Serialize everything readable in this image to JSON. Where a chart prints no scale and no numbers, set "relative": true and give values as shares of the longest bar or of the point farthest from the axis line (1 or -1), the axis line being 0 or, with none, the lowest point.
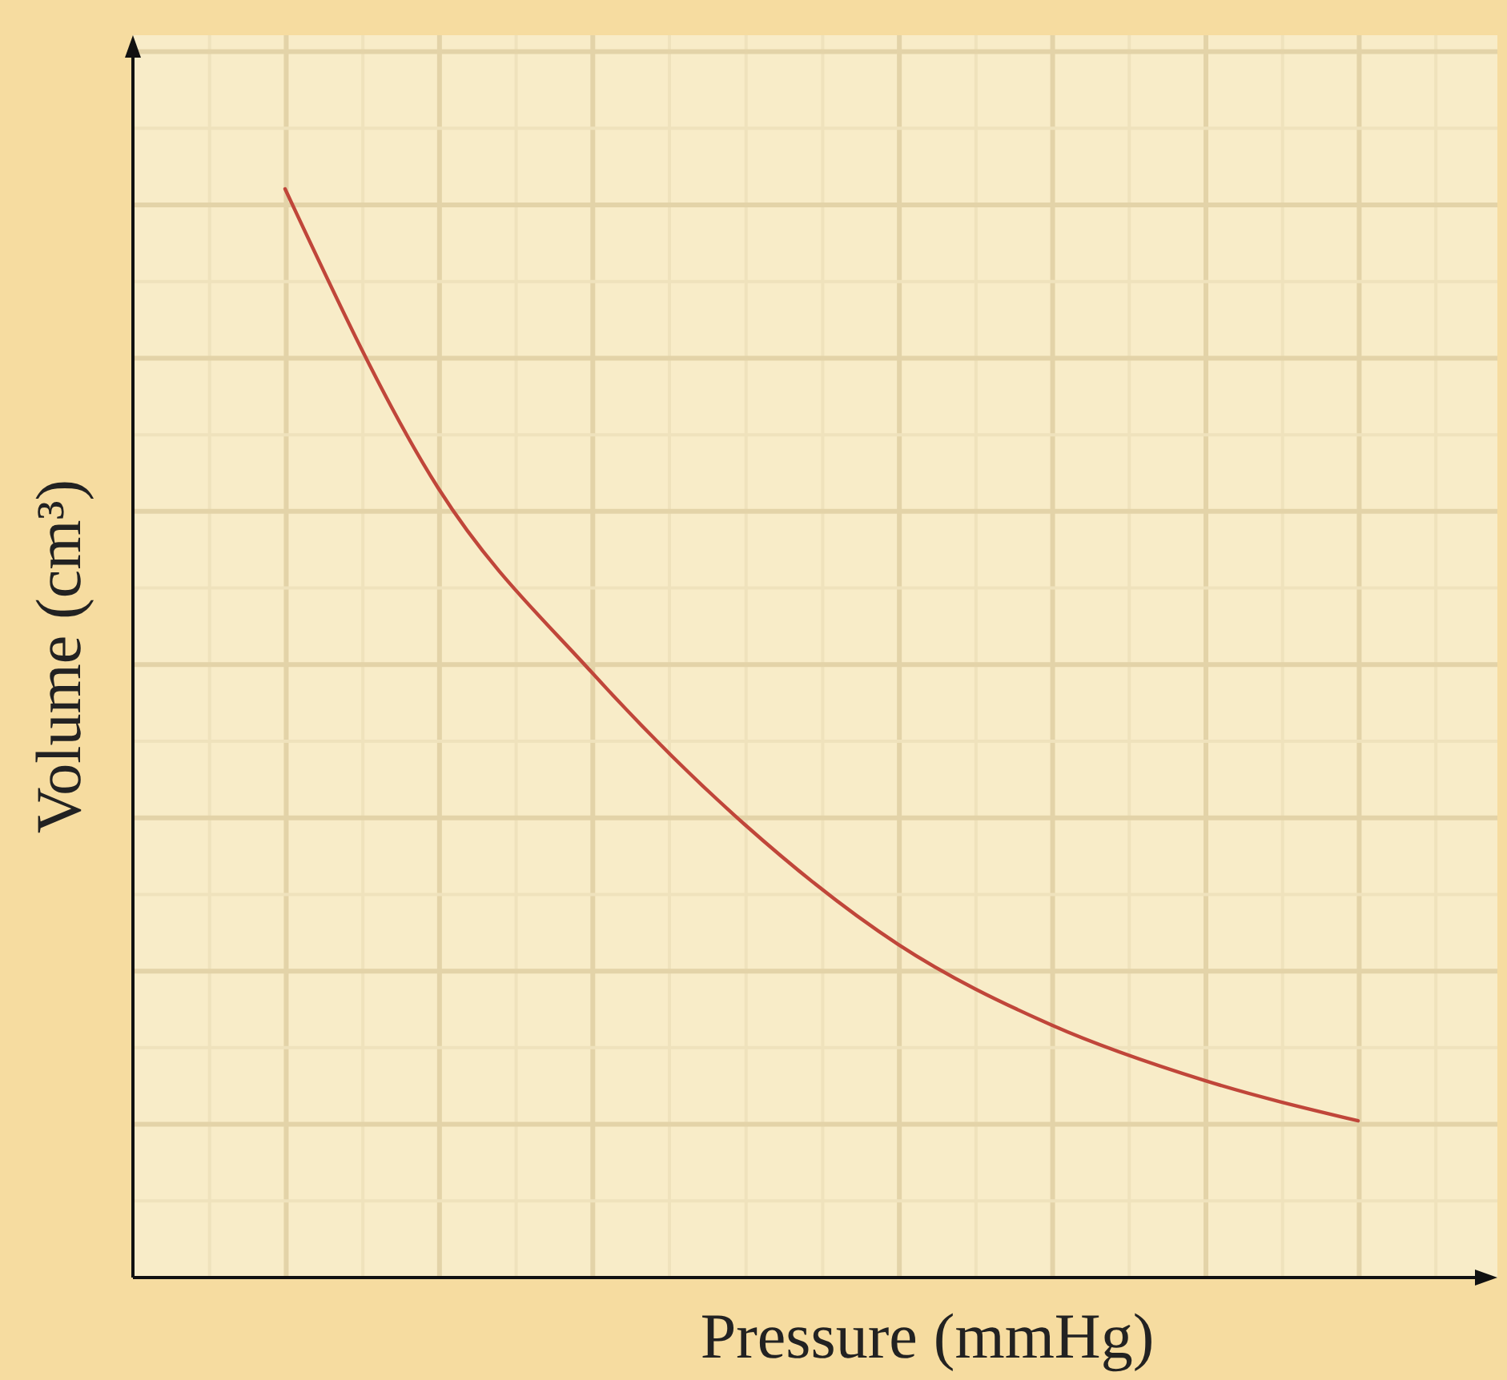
{
  "chart_data": {
    "type": "line",
    "xlabel": "Pressure (mmHg)",
    "ylabel": "Volume (cm³)",
    "relative": true,
    "grid": true,
    "categories": [
      null,
      null,
      null,
      null,
      null,
      null,
      null,
      null
    ],
    "series": [
      {
        "color": "#c0463a",
        "values": [
          1,
          0.725,
          0.556,
          0.416,
          0.306,
          0.232,
          0.181,
          0.144
        ]
      }
    ]
  }
}
